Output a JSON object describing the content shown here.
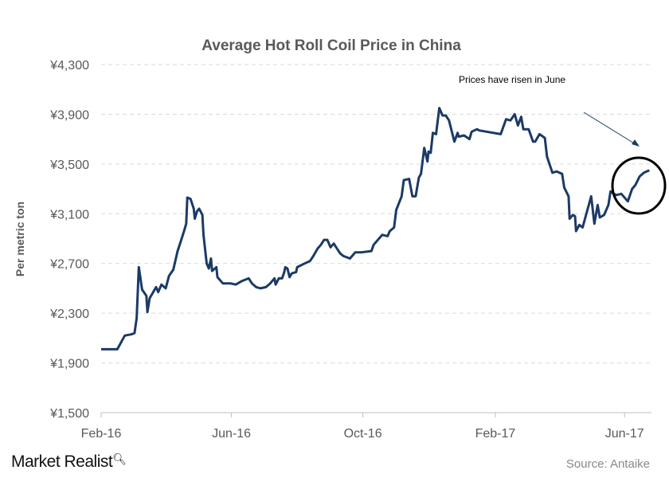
{
  "chart_data": {
    "type": "line",
    "title": "Average Hot Roll Coil Price in China",
    "ylabel": "Per metric ton",
    "xlabel": "",
    "ylim": [
      1500,
      4300
    ],
    "xlim": [
      "2016-02-01",
      "2017-06-26"
    ],
    "yticks": [
      1500,
      1900,
      2300,
      2700,
      3100,
      3500,
      3900,
      4300
    ],
    "ytick_labels": [
      "¥1,500",
      "¥1,900",
      "¥2,300",
      "¥2,700",
      "¥3,100",
      "¥3,500",
      "¥3,900",
      "¥4,300"
    ],
    "xticks": [
      "2016-02-01",
      "2016-06-01",
      "2016-10-01",
      "2017-02-01",
      "2017-06-01"
    ],
    "xtick_labels": [
      "Feb-16",
      "Jun-16",
      "Oct-16",
      "Feb-17",
      "Jun-17"
    ],
    "grid": "horizontal dashed",
    "line_color": "#1b3a66",
    "annotation": {
      "text": "Prices have risen in June",
      "highlight": "circle around June 2017 values, arrow pointing to it"
    },
    "x": [
      "2016-02-01",
      "2016-02-16",
      "2016-02-23",
      "2016-02-29",
      "2016-03-03",
      "2016-03-05",
      "2016-03-07",
      "2016-03-10",
      "2016-03-14",
      "2016-03-15",
      "2016-03-17",
      "2016-03-23",
      "2016-03-25",
      "2016-03-28",
      "2016-04-01",
      "2016-04-04",
      "2016-04-08",
      "2016-04-12",
      "2016-04-15",
      "2016-04-18",
      "2016-04-20",
      "2016-04-21",
      "2016-04-24",
      "2016-04-27",
      "2016-04-28",
      "2016-04-30",
      "2016-05-02",
      "2016-05-05",
      "2016-05-06",
      "2016-05-09",
      "2016-05-11",
      "2016-05-13",
      "2016-05-14",
      "2016-05-18",
      "2016-05-19",
      "2016-05-24",
      "2016-05-31",
      "2016-06-05",
      "2016-06-11",
      "2016-06-17",
      "2016-06-20",
      "2016-06-24",
      "2016-06-28",
      "2016-07-03",
      "2016-07-07",
      "2016-07-11",
      "2016-07-12",
      "2016-07-15",
      "2016-07-18",
      "2016-07-20",
      "2016-07-21",
      "2016-07-23",
      "2016-07-25",
      "2016-07-27",
      "2016-07-31",
      "2016-08-01",
      "2016-08-08",
      "2016-08-13",
      "2016-08-16",
      "2016-08-20",
      "2016-08-23",
      "2016-08-26",
      "2016-08-29",
      "2016-09-01",
      "2016-09-04",
      "2016-09-07",
      "2016-09-10",
      "2016-09-13",
      "2016-09-19",
      "2016-09-24",
      "2016-09-30",
      "2016-10-09",
      "2016-10-11",
      "2016-10-19",
      "2016-10-24",
      "2016-10-26",
      "2016-10-30",
      "2016-11-01",
      "2016-11-06",
      "2016-11-08",
      "2016-11-13",
      "2016-11-16",
      "2016-11-19",
      "2016-11-22",
      "2016-11-24",
      "2016-11-27",
      "2016-11-30",
      "2016-12-01",
      "2016-12-03",
      "2016-12-05",
      "2016-12-08",
      "2016-12-11",
      "2016-12-14",
      "2016-12-17",
      "2016-12-20",
      "2016-12-25",
      "2016-12-28",
      "2016-12-29",
      "2017-01-03",
      "2017-01-08",
      "2017-01-10",
      "2017-01-15",
      "2017-01-17",
      "2017-02-06",
      "2017-02-11",
      "2017-02-15",
      "2017-02-19",
      "2017-02-22",
      "2017-02-25",
      "2017-02-27",
      "2017-03-04",
      "2017-03-08",
      "2017-03-10",
      "2017-03-14",
      "2017-03-19",
      "2017-03-21",
      "2017-03-26",
      "2017-03-30",
      "2017-04-04",
      "2017-04-06",
      "2017-04-10",
      "2017-04-11",
      "2017-04-14",
      "2017-04-16",
      "2017-04-17",
      "2017-04-20",
      "2017-04-23",
      "2017-05-01",
      "2017-05-04",
      "2017-05-07",
      "2017-05-09",
      "2017-05-13",
      "2017-05-17",
      "2017-05-19",
      "2017-05-24",
      "2017-05-29",
      "2017-06-04",
      "2017-06-08",
      "2017-06-11",
      "2017-06-15",
      "2017-06-19",
      "2017-06-24"
    ],
    "values": [
      2010,
      2010,
      2120,
      2130,
      2140,
      2260,
      2670,
      2490,
      2440,
      2310,
      2420,
      2510,
      2470,
      2530,
      2500,
      2600,
      2650,
      2800,
      2880,
      2960,
      3020,
      3230,
      3220,
      3140,
      3060,
      3120,
      3140,
      3090,
      2930,
      2700,
      2660,
      2740,
      2640,
      2670,
      2590,
      2540,
      2540,
      2530,
      2560,
      2580,
      2540,
      2510,
      2500,
      2510,
      2540,
      2580,
      2530,
      2580,
      2580,
      2630,
      2670,
      2660,
      2590,
      2620,
      2630,
      2670,
      2700,
      2720,
      2760,
      2820,
      2850,
      2890,
      2890,
      2830,
      2860,
      2820,
      2780,
      2760,
      2740,
      2790,
      2790,
      2800,
      2850,
      2930,
      2920,
      2960,
      2990,
      3130,
      3240,
      3370,
      3380,
      3240,
      3240,
      3390,
      3420,
      3630,
      3520,
      3600,
      3590,
      3750,
      3740,
      3950,
      3890,
      3890,
      3850,
      3680,
      3750,
      3720,
      3730,
      3700,
      3760,
      3780,
      3770,
      3740,
      3860,
      3850,
      3900,
      3810,
      3880,
      3780,
      3780,
      3680,
      3680,
      3740,
      3710,
      3560,
      3430,
      3440,
      3420,
      3310,
      3240,
      3060,
      3090,
      3080,
      2960,
      3010,
      2990,
      3240,
      3020,
      3170,
      3070,
      3090,
      3170,
      3280,
      3250,
      3260,
      3200,
      3300,
      3330,
      3400,
      3430,
      3450
    ]
  },
  "footer": {
    "brand": "Market Realist",
    "source": "Source: Antaike"
  }
}
